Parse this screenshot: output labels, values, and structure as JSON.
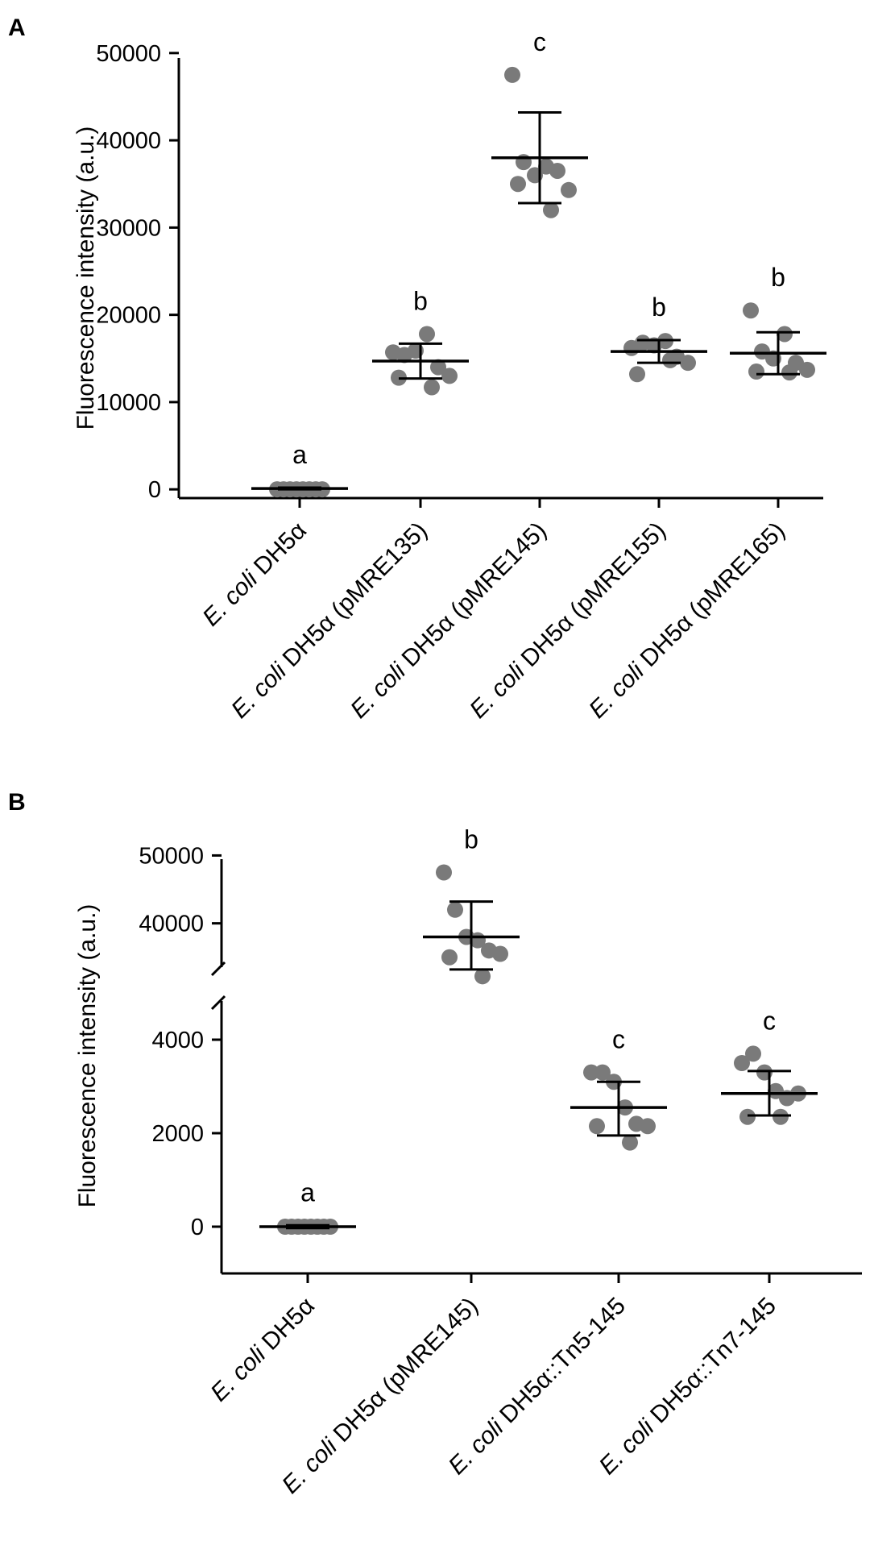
{
  "colors": {
    "point": "#7a7a7a",
    "axis": "#000000",
    "error_bar": "#000000"
  },
  "chart_data": [
    {
      "type": "scatter",
      "panel_label": "A",
      "ylabel": "Fluorescence intensity (a.u.)",
      "ylim": [
        -1000,
        51000
      ],
      "yticks": [
        0,
        10000,
        20000,
        30000,
        40000,
        50000
      ],
      "ytick_labels": [
        "0",
        "10000",
        "20000",
        "30000",
        "40000",
        "50000"
      ],
      "grid": false,
      "categories": [
        {
          "prefix": "E. coli",
          "suffix": " DH5α"
        },
        {
          "prefix": "E. coli",
          "suffix": " DH5α (pMRE135)"
        },
        {
          "prefix": "E. coli",
          "suffix": " DH5α (pMRE145)"
        },
        {
          "prefix": "E. coli",
          "suffix": " DH5α (pMRE155)"
        },
        {
          "prefix": "E. coli",
          "suffix": " DH5α (pMRE165)"
        }
      ],
      "groups": [
        {
          "sig": "a",
          "mean": 100,
          "sd_low": 0,
          "sd_high": 200,
          "points": [
            0,
            0,
            0,
            0,
            0,
            0,
            0,
            0
          ]
        },
        {
          "sig": "b",
          "mean": 14700,
          "sd_low": 12700,
          "sd_high": 16700,
          "points": [
            15700,
            15400,
            15900,
            17800,
            14000,
            13000,
            12800,
            11700
          ]
        },
        {
          "sig": "c",
          "mean": 38000,
          "sd_low": 32800,
          "sd_high": 43200,
          "points": [
            47500,
            37500,
            36000,
            37000,
            36500,
            34300,
            35000,
            32000
          ]
        },
        {
          "sig": "b",
          "mean": 15800,
          "sd_low": 14500,
          "sd_high": 17100,
          "points": [
            16200,
            16800,
            16500,
            17000,
            15200,
            14500,
            13200,
            14800
          ]
        },
        {
          "sig": "b",
          "mean": 15600,
          "sd_low": 13200,
          "sd_high": 18000,
          "points": [
            20500,
            15800,
            15000,
            17800,
            14500,
            13700,
            13500,
            13400
          ]
        }
      ]
    },
    {
      "type": "scatter",
      "panel_label": "B",
      "ylabel": "Fluorescence intensity (a.u.)",
      "broken_axis": true,
      "segments": [
        {
          "range": [
            -1000,
            5000
          ],
          "ticks": [
            0,
            2000,
            4000
          ],
          "tick_labels": [
            "0",
            "2000",
            "4000"
          ]
        },
        {
          "range": [
            32000,
            51000
          ],
          "ticks": [
            40000,
            50000
          ],
          "tick_labels": [
            "40000",
            "50000"
          ]
        }
      ],
      "grid": false,
      "categories": [
        {
          "prefix": "E. coli",
          "suffix": " DH5α"
        },
        {
          "prefix": "E. coli",
          "suffix": " DH5α (pMRE145)"
        },
        {
          "prefix": "E. coli",
          "suffix": " DH5α::Tn5-145"
        },
        {
          "prefix": "E. coli",
          "suffix": " DH5α::Tn7-145"
        }
      ],
      "groups": [
        {
          "sig": "a",
          "mean": 0,
          "sd_low": -30,
          "sd_high": 30,
          "points": [
            0,
            0,
            0,
            0,
            0,
            0,
            0,
            0
          ]
        },
        {
          "sig": "b",
          "mean": 38000,
          "sd_low": 33200,
          "sd_high": 43200,
          "points": [
            47500,
            42000,
            38000,
            37500,
            36000,
            35500,
            35000,
            32200
          ]
        },
        {
          "sig": "c",
          "mean": 2550,
          "sd_low": 1950,
          "sd_high": 3100,
          "points": [
            3300,
            3300,
            3100,
            2550,
            2200,
            2150,
            2150,
            1800
          ]
        },
        {
          "sig": "c",
          "mean": 2850,
          "sd_low": 2380,
          "sd_high": 3330,
          "points": [
            3500,
            3700,
            3300,
            2900,
            2750,
            2850,
            2350,
            2350
          ]
        }
      ]
    }
  ]
}
